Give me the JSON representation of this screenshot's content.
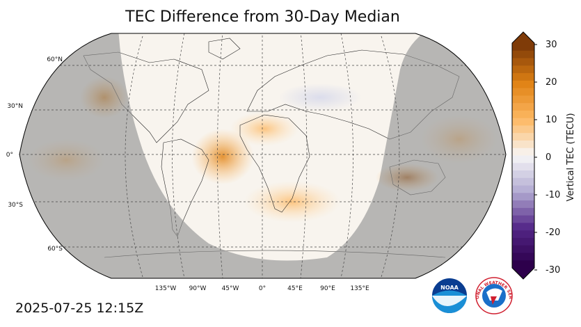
{
  "title": "TEC Difference from 30-Day Median",
  "timestamp": "2025-07-25 12:15Z",
  "map": {
    "projection": "Robinson",
    "lat_labels": [
      "60°N",
      "30°N",
      "0°",
      "30°S",
      "60°S"
    ],
    "lon_labels": [
      "135°W",
      "90°W",
      "45°W",
      "0°",
      "45°E",
      "90°E",
      "135°E"
    ]
  },
  "colorbar": {
    "label": "Vertical TEC (TECU)",
    "ticks": [
      "30",
      "20",
      "10",
      "0",
      "-10",
      "-20",
      "-30"
    ],
    "range": [
      -30,
      30
    ],
    "colors": {
      "max": "#7f3b08",
      "high": "#e08214",
      "mid_high": "#fdb863",
      "zero": "#f7f7f7",
      "mid_low": "#b2abd2",
      "low": "#542788",
      "min": "#2d004b"
    }
  },
  "logos": {
    "noaa_text": "NOAA",
    "nws_text": "NATIONAL WEATHER SERVICE"
  }
}
